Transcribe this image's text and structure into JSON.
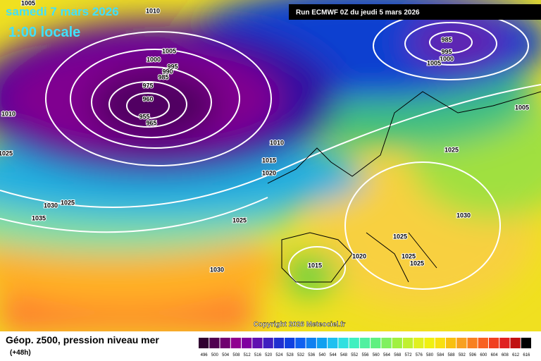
{
  "header": {
    "date": "samedi 7 mars 2026",
    "time": "1:00 locale",
    "run": "Run ECMWF 0Z du jeudi 5 mars 2026"
  },
  "copyright": "Copyright 2026 Meteociel.fr",
  "footer": {
    "title": "Géop. z500, pression niveau mer",
    "lead": "(+48h)"
  },
  "legend": {
    "labels": [
      "496",
      "500",
      "504",
      "508",
      "512",
      "516",
      "520",
      "524",
      "528",
      "532",
      "536",
      "540",
      "544",
      "548",
      "552",
      "556",
      "560",
      "564",
      "568",
      "572",
      "576",
      "580",
      "584",
      "588",
      "592",
      "596",
      "600",
      "604",
      "608",
      "612",
      "616"
    ]
  },
  "isobars": [
    "1005",
    "1010",
    "1005",
    "1000",
    "995",
    "990",
    "985",
    "975",
    "960",
    "955",
    "965",
    "1010",
    "1025",
    "1010",
    "1015",
    "1020",
    "1030",
    "1025",
    "1035",
    "1025",
    "1030",
    "985",
    "995",
    "1000",
    "1005",
    "1005",
    "1025",
    "1030",
    "1025",
    "1020",
    "1015",
    "1025",
    "1025"
  ]
}
